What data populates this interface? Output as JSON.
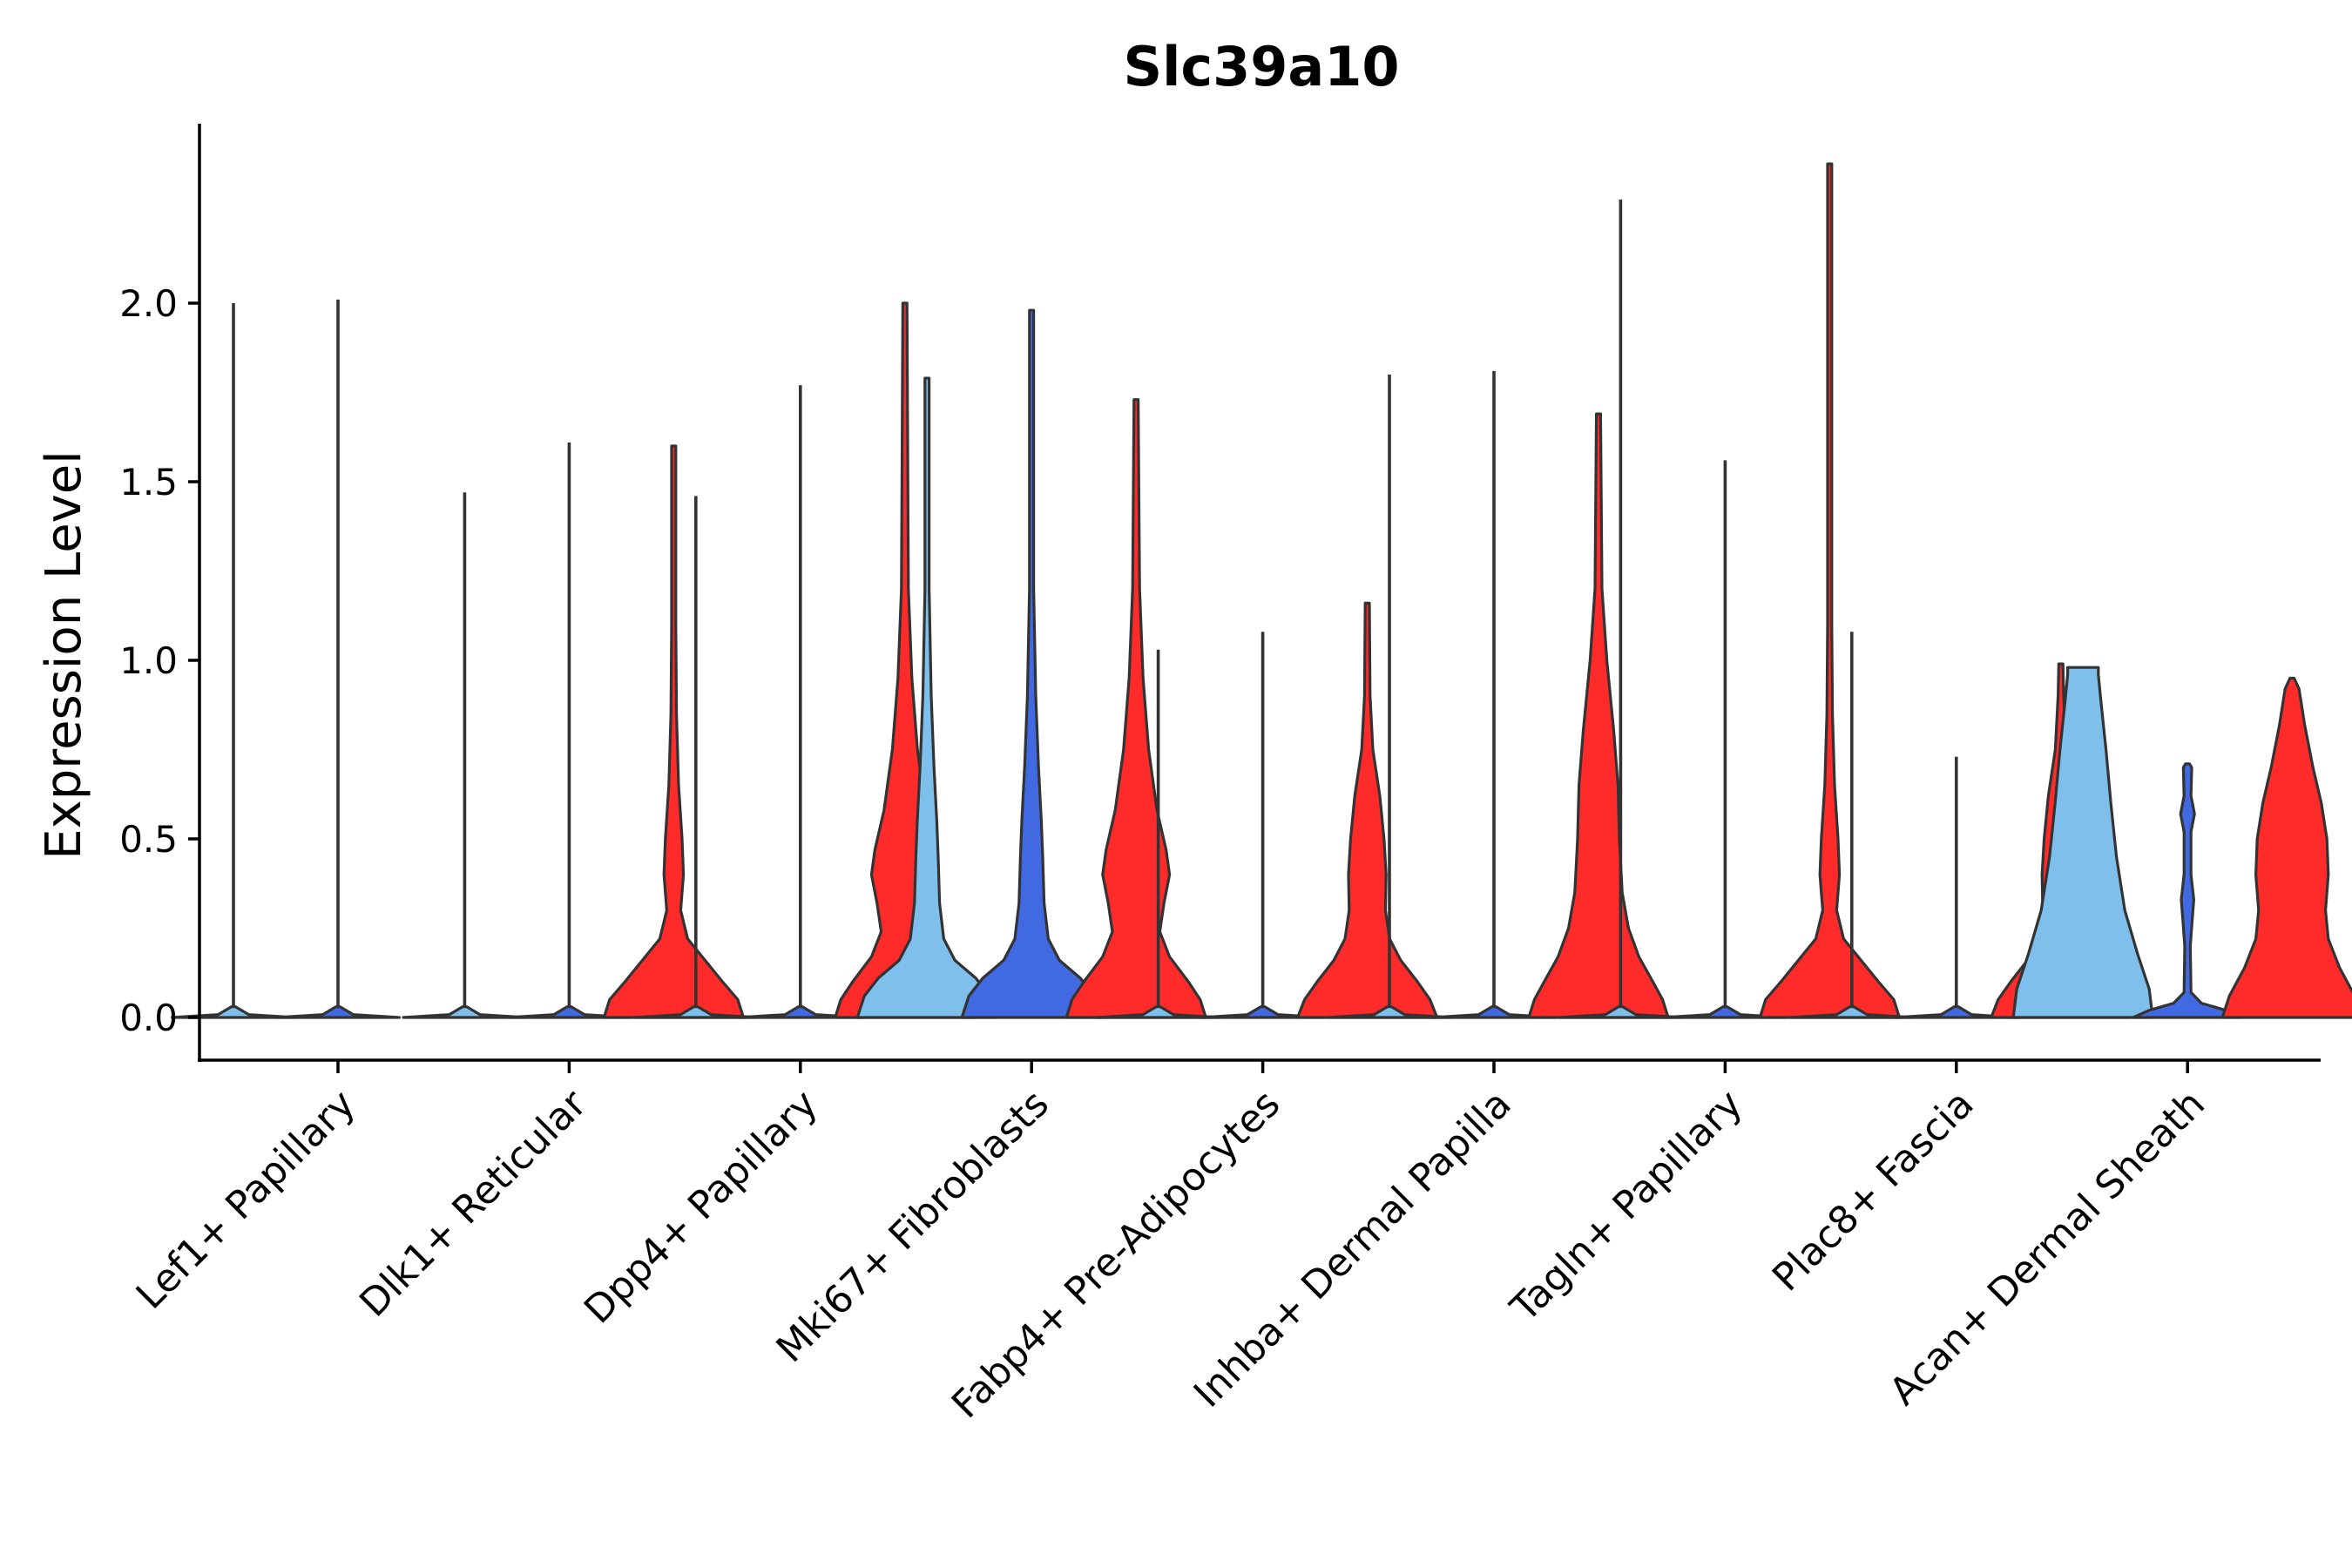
{
  "chart_data": {
    "type": "violin",
    "title": "Slc39a10",
    "xlabel": "",
    "ylabel": "Expression Level",
    "ylim": [
      -0.12,
      2.5
    ],
    "yticks": [
      0.0,
      0.5,
      1.0,
      1.5,
      2.0
    ],
    "ytick_labels": [
      "0.0",
      "0.5",
      "1.0",
      "1.5",
      "2.0"
    ],
    "colors": {
      "light_blue": "#7fbfec",
      "blue": "#4169e1",
      "red": "#ff2a2a",
      "outline": "#333333",
      "axis": "#000000"
    },
    "categories": [
      "Lef1+ Papillary",
      "Dlk1+ Reticular",
      "Dpp4+ Papillary",
      "Mki67+ Fibroblasts",
      "Fabp4+ Pre-Adipocytes",
      "Inhba+ Dermal Papilla",
      "Tagln+ Papillary",
      "Plac8+ Fascia",
      "Acan+ Dermal Sheath"
    ],
    "groups": [
      {
        "category": "Lef1+ Papillary",
        "violins": [
          {
            "slot": 0,
            "color": "light_blue",
            "max": 2.0,
            "profile": "flat"
          },
          {
            "slot": 1,
            "color": "blue",
            "max": 2.01,
            "profile": "flat"
          }
        ]
      },
      {
        "category": "Dlk1+ Reticular",
        "violins": [
          {
            "slot": 0,
            "color": "light_blue",
            "max": 1.47,
            "profile": "flat"
          },
          {
            "slot": 1,
            "color": "blue",
            "max": 1.61,
            "profile": "flat"
          },
          {
            "slot": 2,
            "color": "red",
            "max": 1.6,
            "profile": "red_low"
          }
        ]
      },
      {
        "category": "Dpp4+ Papillary",
        "violins": [
          {
            "slot": 0,
            "color": "light_blue",
            "max": 1.46,
            "profile": "flat"
          },
          {
            "slot": 1,
            "color": "blue",
            "max": 1.77,
            "profile": "flat"
          },
          {
            "slot": 2,
            "color": "red",
            "max": 2.0,
            "profile": "red_bulge"
          }
        ]
      },
      {
        "category": "Mki67+ Fibroblasts",
        "violins": [
          {
            "slot": 0,
            "color": "light_blue",
            "max": 1.79,
            "profile": "blue_wide"
          },
          {
            "slot": 1,
            "color": "blue",
            "max": 1.98,
            "profile": "blue_wide"
          },
          {
            "slot": 2,
            "color": "red",
            "max": 1.73,
            "profile": "red_bulge"
          }
        ]
      },
      {
        "category": "Fabp4+ Pre-Adipocytes",
        "violins": [
          {
            "slot": 0,
            "color": "light_blue",
            "max": 1.03,
            "profile": "flat"
          },
          {
            "slot": 1,
            "color": "blue",
            "max": 1.08,
            "profile": "flat"
          },
          {
            "slot": 2,
            "color": "red",
            "max": 1.16,
            "profile": "red_mid"
          }
        ]
      },
      {
        "category": "Inhba+ Dermal Papilla",
        "violins": [
          {
            "slot": 0,
            "color": "light_blue",
            "max": 1.8,
            "profile": "flat"
          },
          {
            "slot": 1,
            "color": "blue",
            "max": 1.81,
            "profile": "flat"
          },
          {
            "slot": 2,
            "color": "red",
            "max": 1.69,
            "profile": "red_broad"
          }
        ]
      },
      {
        "category": "Tagln+ Papillary",
        "violins": [
          {
            "slot": 0,
            "color": "light_blue",
            "max": 2.29,
            "profile": "flat"
          },
          {
            "slot": 1,
            "color": "blue",
            "max": 1.56,
            "profile": "flat"
          },
          {
            "slot": 2,
            "color": "red",
            "max": 2.39,
            "profile": "red_low"
          }
        ]
      },
      {
        "category": "Plac8+ Fascia",
        "violins": [
          {
            "slot": 0,
            "color": "light_blue",
            "max": 1.08,
            "profile": "flat"
          },
          {
            "slot": 1,
            "color": "blue",
            "max": 0.73,
            "profile": "flat"
          },
          {
            "slot": 2,
            "color": "red",
            "max": 0.99,
            "profile": "red_mid"
          }
        ]
      },
      {
        "category": "Acan+ Dermal Sheath",
        "violins": [
          {
            "slot": 0,
            "color": "light_blue",
            "max": 0.98,
            "profile": "acan_lb"
          },
          {
            "slot": 1,
            "color": "blue",
            "max": 0.71,
            "profile": "acan_blue"
          },
          {
            "slot": 2,
            "color": "red",
            "max": 0.95,
            "profile": "acan_red"
          }
        ]
      }
    ]
  }
}
